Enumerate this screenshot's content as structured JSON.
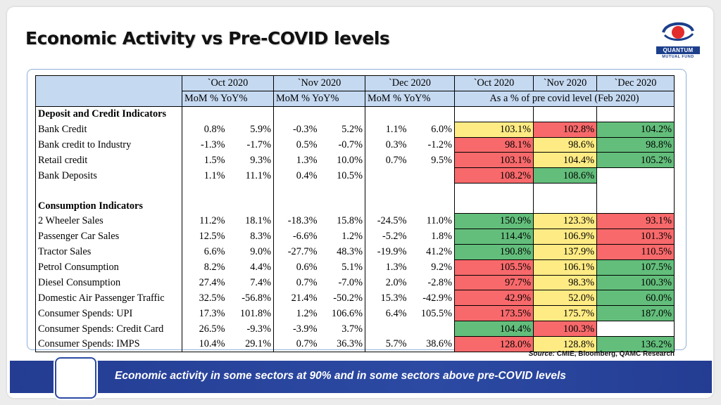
{
  "title": "Economic Activity vs Pre-COVID levels",
  "logo": {
    "name": "QUANTUM",
    "sub": "MUTUAL FUND"
  },
  "colors": {
    "green": "#63be7b",
    "yellow": "#ffeb84",
    "red": "#f8696b",
    "header": "#c5d9f1",
    "banner": "#2c4aa3"
  },
  "table": {
    "months": [
      "`Oct 2020",
      "`Nov 2020",
      "`Dec 2020"
    ],
    "pre_months": [
      "`Oct 2020",
      "`Nov 2020",
      "`Dec 2020"
    ],
    "sub_header": "MoM % YoY%",
    "pre_header": "As a % of pre covid level (Feb 2020)",
    "rows": [
      {
        "type": "section",
        "label": "Deposit and Credit Indicators"
      },
      {
        "type": "data",
        "label": "Bank Credit",
        "vals": [
          "0.8%",
          "5.9%",
          "-0.3%",
          "5.2%",
          "1.1%",
          "6.0%"
        ],
        "pre": [
          {
            "v": "103.1%",
            "c": "yellow"
          },
          {
            "v": "102.8%",
            "c": "red"
          },
          {
            "v": "104.2%",
            "c": "green"
          }
        ]
      },
      {
        "type": "data",
        "label": "Bank credit to Industry",
        "vals": [
          "-1.3%",
          "-1.7%",
          "0.5%",
          "-0.7%",
          "0.3%",
          "-1.2%"
        ],
        "pre": [
          {
            "v": "98.1%",
            "c": "red"
          },
          {
            "v": "98.6%",
            "c": "yellow"
          },
          {
            "v": "98.8%",
            "c": "green"
          }
        ]
      },
      {
        "type": "data",
        "label": "Retail credit",
        "vals": [
          "1.5%",
          "9.3%",
          "1.3%",
          "10.0%",
          "0.7%",
          "9.5%"
        ],
        "pre": [
          {
            "v": "103.1%",
            "c": "red"
          },
          {
            "v": "104.4%",
            "c": "yellow"
          },
          {
            "v": "105.2%",
            "c": "green"
          }
        ]
      },
      {
        "type": "data",
        "label": "Bank Deposits",
        "vals": [
          "1.1%",
          "11.1%",
          "0.4%",
          "10.5%",
          "",
          ""
        ],
        "pre": [
          {
            "v": "108.2%",
            "c": "red"
          },
          {
            "v": "108.6%",
            "c": "green"
          },
          {
            "v": "",
            "c": ""
          }
        ]
      },
      {
        "type": "blank"
      },
      {
        "type": "section",
        "label": "Consumption Indicators"
      },
      {
        "type": "data",
        "label": "2 Wheeler Sales",
        "vals": [
          "11.2%",
          "18.1%",
          "-18.3%",
          "15.8%",
          "-24.5%",
          "11.0%"
        ],
        "pre": [
          {
            "v": "150.9%",
            "c": "green"
          },
          {
            "v": "123.3%",
            "c": "yellow"
          },
          {
            "v": "93.1%",
            "c": "red"
          }
        ]
      },
      {
        "type": "data",
        "label": "Passenger Car Sales",
        "vals": [
          "12.5%",
          "8.3%",
          "-6.6%",
          "1.2%",
          "-5.2%",
          "1.8%"
        ],
        "pre": [
          {
            "v": "114.4%",
            "c": "green"
          },
          {
            "v": "106.9%",
            "c": "yellow"
          },
          {
            "v": "101.3%",
            "c": "red"
          }
        ]
      },
      {
        "type": "data",
        "label": "Tractor Sales",
        "vals": [
          "6.6%",
          "9.0%",
          "-27.7%",
          "48.3%",
          "-19.9%",
          "41.2%"
        ],
        "pre": [
          {
            "v": "190.8%",
            "c": "green"
          },
          {
            "v": "137.9%",
            "c": "yellow"
          },
          {
            "v": "110.5%",
            "c": "red"
          }
        ]
      },
      {
        "type": "data",
        "label": "Petrol Consumption",
        "vals": [
          "8.2%",
          "4.4%",
          "0.6%",
          "5.1%",
          "1.3%",
          "9.2%"
        ],
        "pre": [
          {
            "v": "105.5%",
            "c": "red"
          },
          {
            "v": "106.1%",
            "c": "yellow"
          },
          {
            "v": "107.5%",
            "c": "green"
          }
        ]
      },
      {
        "type": "data",
        "label": "Diesel Consumption",
        "vals": [
          "27.4%",
          "7.4%",
          "0.7%",
          "-7.0%",
          "2.0%",
          "-2.8%"
        ],
        "pre": [
          {
            "v": "97.7%",
            "c": "red"
          },
          {
            "v": "98.3%",
            "c": "yellow"
          },
          {
            "v": "100.3%",
            "c": "green"
          }
        ]
      },
      {
        "type": "data",
        "label": "Domestic Air Passenger Traffic",
        "vals": [
          "32.5%",
          "-56.8%",
          "21.4%",
          "-50.2%",
          "15.3%",
          "-42.9%"
        ],
        "pre": [
          {
            "v": "42.9%",
            "c": "red"
          },
          {
            "v": "52.0%",
            "c": "yellow"
          },
          {
            "v": "60.0%",
            "c": "green"
          }
        ]
      },
      {
        "type": "data",
        "label": "Consumer Spends: UPI",
        "vals": [
          "17.3%",
          "101.8%",
          "1.2%",
          "106.6%",
          "6.4%",
          "105.5%"
        ],
        "pre": [
          {
            "v": "173.5%",
            "c": "red"
          },
          {
            "v": "175.7%",
            "c": "yellow"
          },
          {
            "v": "187.0%",
            "c": "green"
          }
        ]
      },
      {
        "type": "data",
        "label": "Consumer Spends: Credit Card",
        "vals": [
          "26.5%",
          "-9.3%",
          "-3.9%",
          "3.7%",
          "",
          ""
        ],
        "pre": [
          {
            "v": "104.4%",
            "c": "green"
          },
          {
            "v": "100.3%",
            "c": "red"
          },
          {
            "v": "",
            "c": ""
          }
        ]
      },
      {
        "type": "data",
        "label": "Consumer Spends: IMPS",
        "vals": [
          "10.4%",
          "29.1%",
          "0.7%",
          "36.3%",
          "5.7%",
          "38.6%"
        ],
        "pre": [
          {
            "v": "128.0%",
            "c": "red"
          },
          {
            "v": "128.8%",
            "c": "yellow"
          },
          {
            "v": "136.2%",
            "c": "green"
          }
        ]
      }
    ]
  },
  "source": {
    "label": "Source:",
    "text": " CMIE, Bloomberg, QAMC Research"
  },
  "banner": "Economic activity in some sectors at 90% and in some sectors above pre-COVID levels"
}
